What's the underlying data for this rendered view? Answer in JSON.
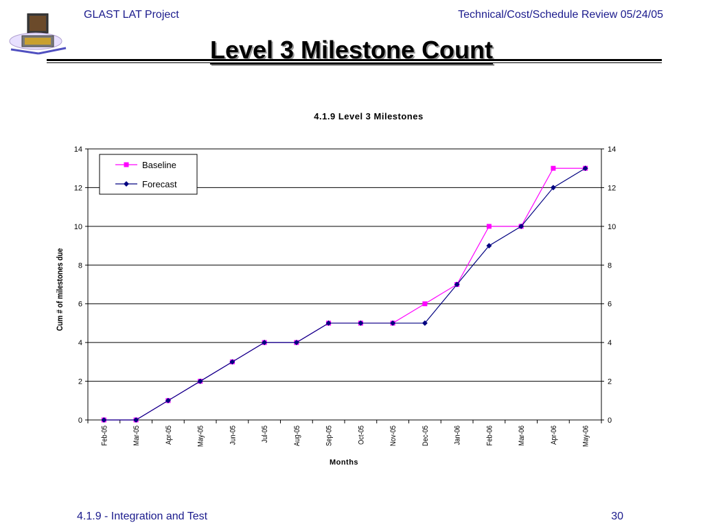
{
  "header": {
    "project": "GLAST LAT Project",
    "review": "Technical/Cost/Schedule Review 05/24/05"
  },
  "slide_title": "Level 3 Milestone Count",
  "footer": {
    "section": "4.1.9 - Integration and Test",
    "page": "30"
  },
  "colors": {
    "header_text": "#1a1a8c",
    "baseline": "#ff00ff",
    "forecast": "#000080"
  },
  "chart_data": {
    "type": "line",
    "title": "4.1.9 Level 3 Milestones",
    "xlabel": "Months",
    "ylabel": "Cum # of milestones due",
    "categories": [
      "Feb-05",
      "Mar-05",
      "Apr-05",
      "May-05",
      "Jun-05",
      "Jul-05",
      "Aug-05",
      "Sep-05",
      "Oct-05",
      "Nov-05",
      "Dec-05",
      "Jan-06",
      "Feb-06",
      "Mar-06",
      "Apr-06",
      "May-06"
    ],
    "ylim": [
      0,
      14
    ],
    "yticks": [
      0,
      2,
      4,
      6,
      8,
      10,
      12,
      14
    ],
    "grid": true,
    "legend_position": "top-left",
    "secondary_y_axis": true,
    "series": [
      {
        "name": "Baseline",
        "color": "#ff00ff",
        "marker": "square",
        "values": [
          0,
          0,
          1,
          2,
          3,
          4,
          4,
          5,
          5,
          5,
          6,
          7,
          10,
          10,
          13,
          13
        ]
      },
      {
        "name": "Forecast",
        "color": "#000080",
        "marker": "diamond",
        "values": [
          0,
          0,
          1,
          2,
          3,
          4,
          4,
          5,
          5,
          5,
          5,
          7,
          9,
          10,
          12,
          13
        ]
      }
    ]
  }
}
